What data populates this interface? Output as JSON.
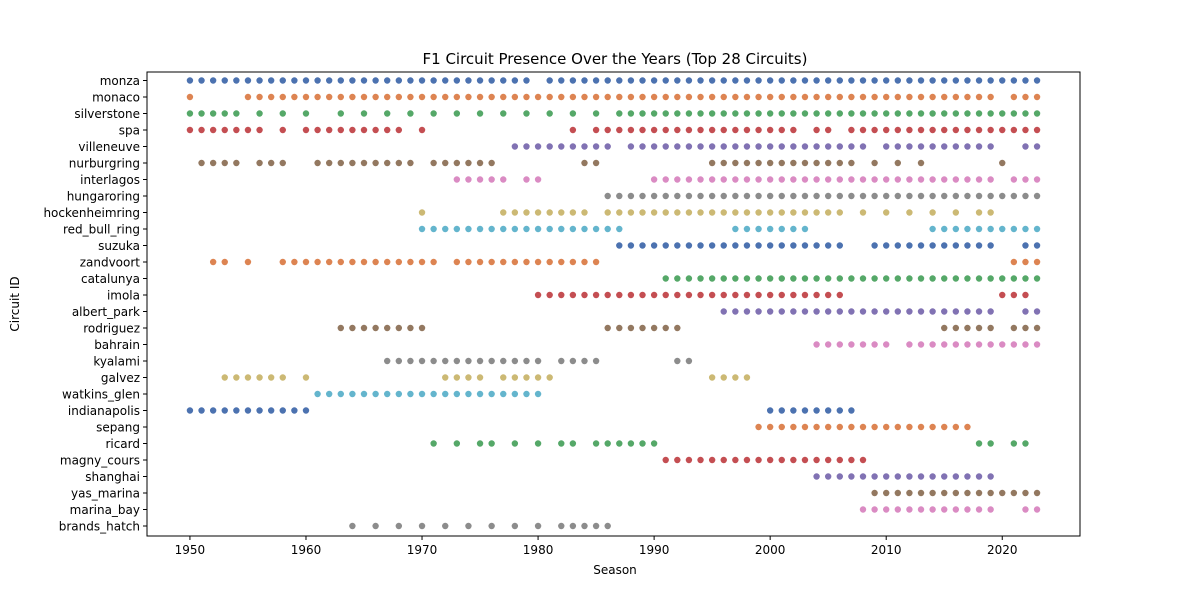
{
  "chart_data": {
    "type": "scatter",
    "title": "F1 Circuit Presence Over the Years (Top 28 Circuits)",
    "xlabel": "Season",
    "ylabel": "Circuit ID",
    "xlim": [
      1946.3,
      2026.7
    ],
    "xticks": [
      1950,
      1960,
      1970,
      1980,
      1990,
      2000,
      2010,
      2020
    ],
    "grid": false,
    "legend": "none",
    "palette": [
      "#4c72b0",
      "#dd8452",
      "#55a868",
      "#c44e52",
      "#8172b3",
      "#937860",
      "#da8bc3",
      "#8c8c8c",
      "#ccb974",
      "#64b5cd"
    ],
    "circuits": [
      "monza",
      "monaco",
      "silverstone",
      "spa",
      "villeneuve",
      "nurburgring",
      "interlagos",
      "hungaroring",
      "hockenheimring",
      "red_bull_ring",
      "suzuka",
      "zandvoort",
      "catalunya",
      "imola",
      "albert_park",
      "rodriguez",
      "bahrain",
      "kyalami",
      "galvez",
      "watkins_glen",
      "indianapolis",
      "sepang",
      "ricard",
      "magny_cours",
      "shanghai",
      "yas_marina",
      "marina_bay",
      "brands_hatch"
    ],
    "series": [
      {
        "name": "monza",
        "seasons": [
          [
            1950,
            1979
          ],
          [
            1981,
            2023
          ]
        ]
      },
      {
        "name": "monaco",
        "seasons": [
          [
            1950,
            1950
          ],
          [
            1955,
            2019
          ],
          [
            2021,
            2023
          ]
        ]
      },
      {
        "name": "silverstone",
        "seasons": [
          [
            1950,
            1954
          ],
          1956,
          1958,
          1960,
          1963,
          1965,
          1967,
          1969,
          1971,
          1973,
          1975,
          1977,
          1979,
          1981,
          1983,
          [
            1985,
            1985
          ],
          [
            1987,
            2023
          ]
        ]
      },
      {
        "name": "spa",
        "seasons": [
          [
            1950,
            1956
          ],
          1958,
          [
            1960,
            1968
          ],
          1970,
          1983,
          [
            1985,
            2002
          ],
          [
            2004,
            2005
          ],
          [
            2007,
            2023
          ]
        ]
      },
      {
        "name": "villeneuve",
        "seasons": [
          [
            1978,
            1986
          ],
          [
            1988,
            2008
          ],
          [
            2010,
            2019
          ],
          [
            2022,
            2023
          ]
        ]
      },
      {
        "name": "nurburgring",
        "seasons": [
          [
            1951,
            1954
          ],
          [
            1956,
            1958
          ],
          [
            1961,
            1969
          ],
          [
            1971,
            1976
          ],
          [
            1984,
            1985
          ],
          [
            1995,
            2007
          ],
          2009,
          2011,
          2013,
          2020
        ]
      },
      {
        "name": "interlagos",
        "seasons": [
          [
            1973,
            1977
          ],
          [
            1979,
            1980
          ],
          [
            1990,
            2019
          ],
          [
            2021,
            2023
          ]
        ]
      },
      {
        "name": "hungaroring",
        "seasons": [
          [
            1986,
            2023
          ]
        ]
      },
      {
        "name": "hockenheimring",
        "seasons": [
          1970,
          [
            1977,
            1984
          ],
          [
            1986,
            2006
          ],
          2008,
          2010,
          2012,
          2014,
          2016,
          [
            2018,
            2019
          ]
        ]
      },
      {
        "name": "red_bull_ring",
        "seasons": [
          [
            1970,
            1987
          ],
          [
            1997,
            2003
          ],
          [
            2014,
            2023
          ]
        ]
      },
      {
        "name": "suzuka",
        "seasons": [
          [
            1987,
            2006
          ],
          [
            2009,
            2019
          ],
          [
            2022,
            2023
          ]
        ]
      },
      {
        "name": "zandvoort",
        "seasons": [
          [
            1952,
            1953
          ],
          1955,
          [
            1958,
            1971
          ],
          [
            1973,
            1985
          ],
          [
            2021,
            2023
          ]
        ]
      },
      {
        "name": "catalunya",
        "seasons": [
          [
            1991,
            2023
          ]
        ]
      },
      {
        "name": "imola",
        "seasons": [
          [
            1980,
            2006
          ],
          [
            2020,
            2022
          ]
        ]
      },
      {
        "name": "albert_park",
        "seasons": [
          [
            1996,
            2019
          ],
          [
            2022,
            2023
          ]
        ]
      },
      {
        "name": "rodriguez",
        "seasons": [
          [
            1963,
            1970
          ],
          [
            1986,
            1992
          ],
          [
            2015,
            2019
          ],
          [
            2021,
            2023
          ]
        ]
      },
      {
        "name": "bahrain",
        "seasons": [
          [
            2004,
            2010
          ],
          [
            2012,
            2023
          ]
        ]
      },
      {
        "name": "kyalami",
        "seasons": [
          [
            1967,
            1980
          ],
          [
            1982,
            1985
          ],
          [
            1992,
            1993
          ]
        ]
      },
      {
        "name": "galvez",
        "seasons": [
          [
            1953,
            1958
          ],
          1960,
          [
            1972,
            1975
          ],
          [
            1977,
            1981
          ],
          [
            1995,
            1998
          ]
        ]
      },
      {
        "name": "watkins_glen",
        "seasons": [
          [
            1961,
            1980
          ]
        ]
      },
      {
        "name": "indianapolis",
        "seasons": [
          [
            1950,
            1960
          ],
          [
            2000,
            2007
          ]
        ]
      },
      {
        "name": "sepang",
        "seasons": [
          [
            1999,
            2017
          ]
        ]
      },
      {
        "name": "ricard",
        "seasons": [
          1971,
          1973,
          1975,
          1976,
          1978,
          1980,
          1982,
          1983,
          [
            1985,
            1990
          ],
          2018,
          2019,
          2021,
          2022
        ]
      },
      {
        "name": "magny_cours",
        "seasons": [
          [
            1991,
            2008
          ]
        ]
      },
      {
        "name": "shanghai",
        "seasons": [
          [
            2004,
            2019
          ]
        ]
      },
      {
        "name": "yas_marina",
        "seasons": [
          [
            2009,
            2023
          ]
        ]
      },
      {
        "name": "marina_bay",
        "seasons": [
          [
            2008,
            2019
          ],
          [
            2022,
            2023
          ]
        ]
      },
      {
        "name": "brands_hatch",
        "seasons": [
          1964,
          1966,
          1968,
          1970,
          1972,
          1974,
          1976,
          1978,
          1980,
          [
            1982,
            1986
          ]
        ]
      }
    ]
  }
}
